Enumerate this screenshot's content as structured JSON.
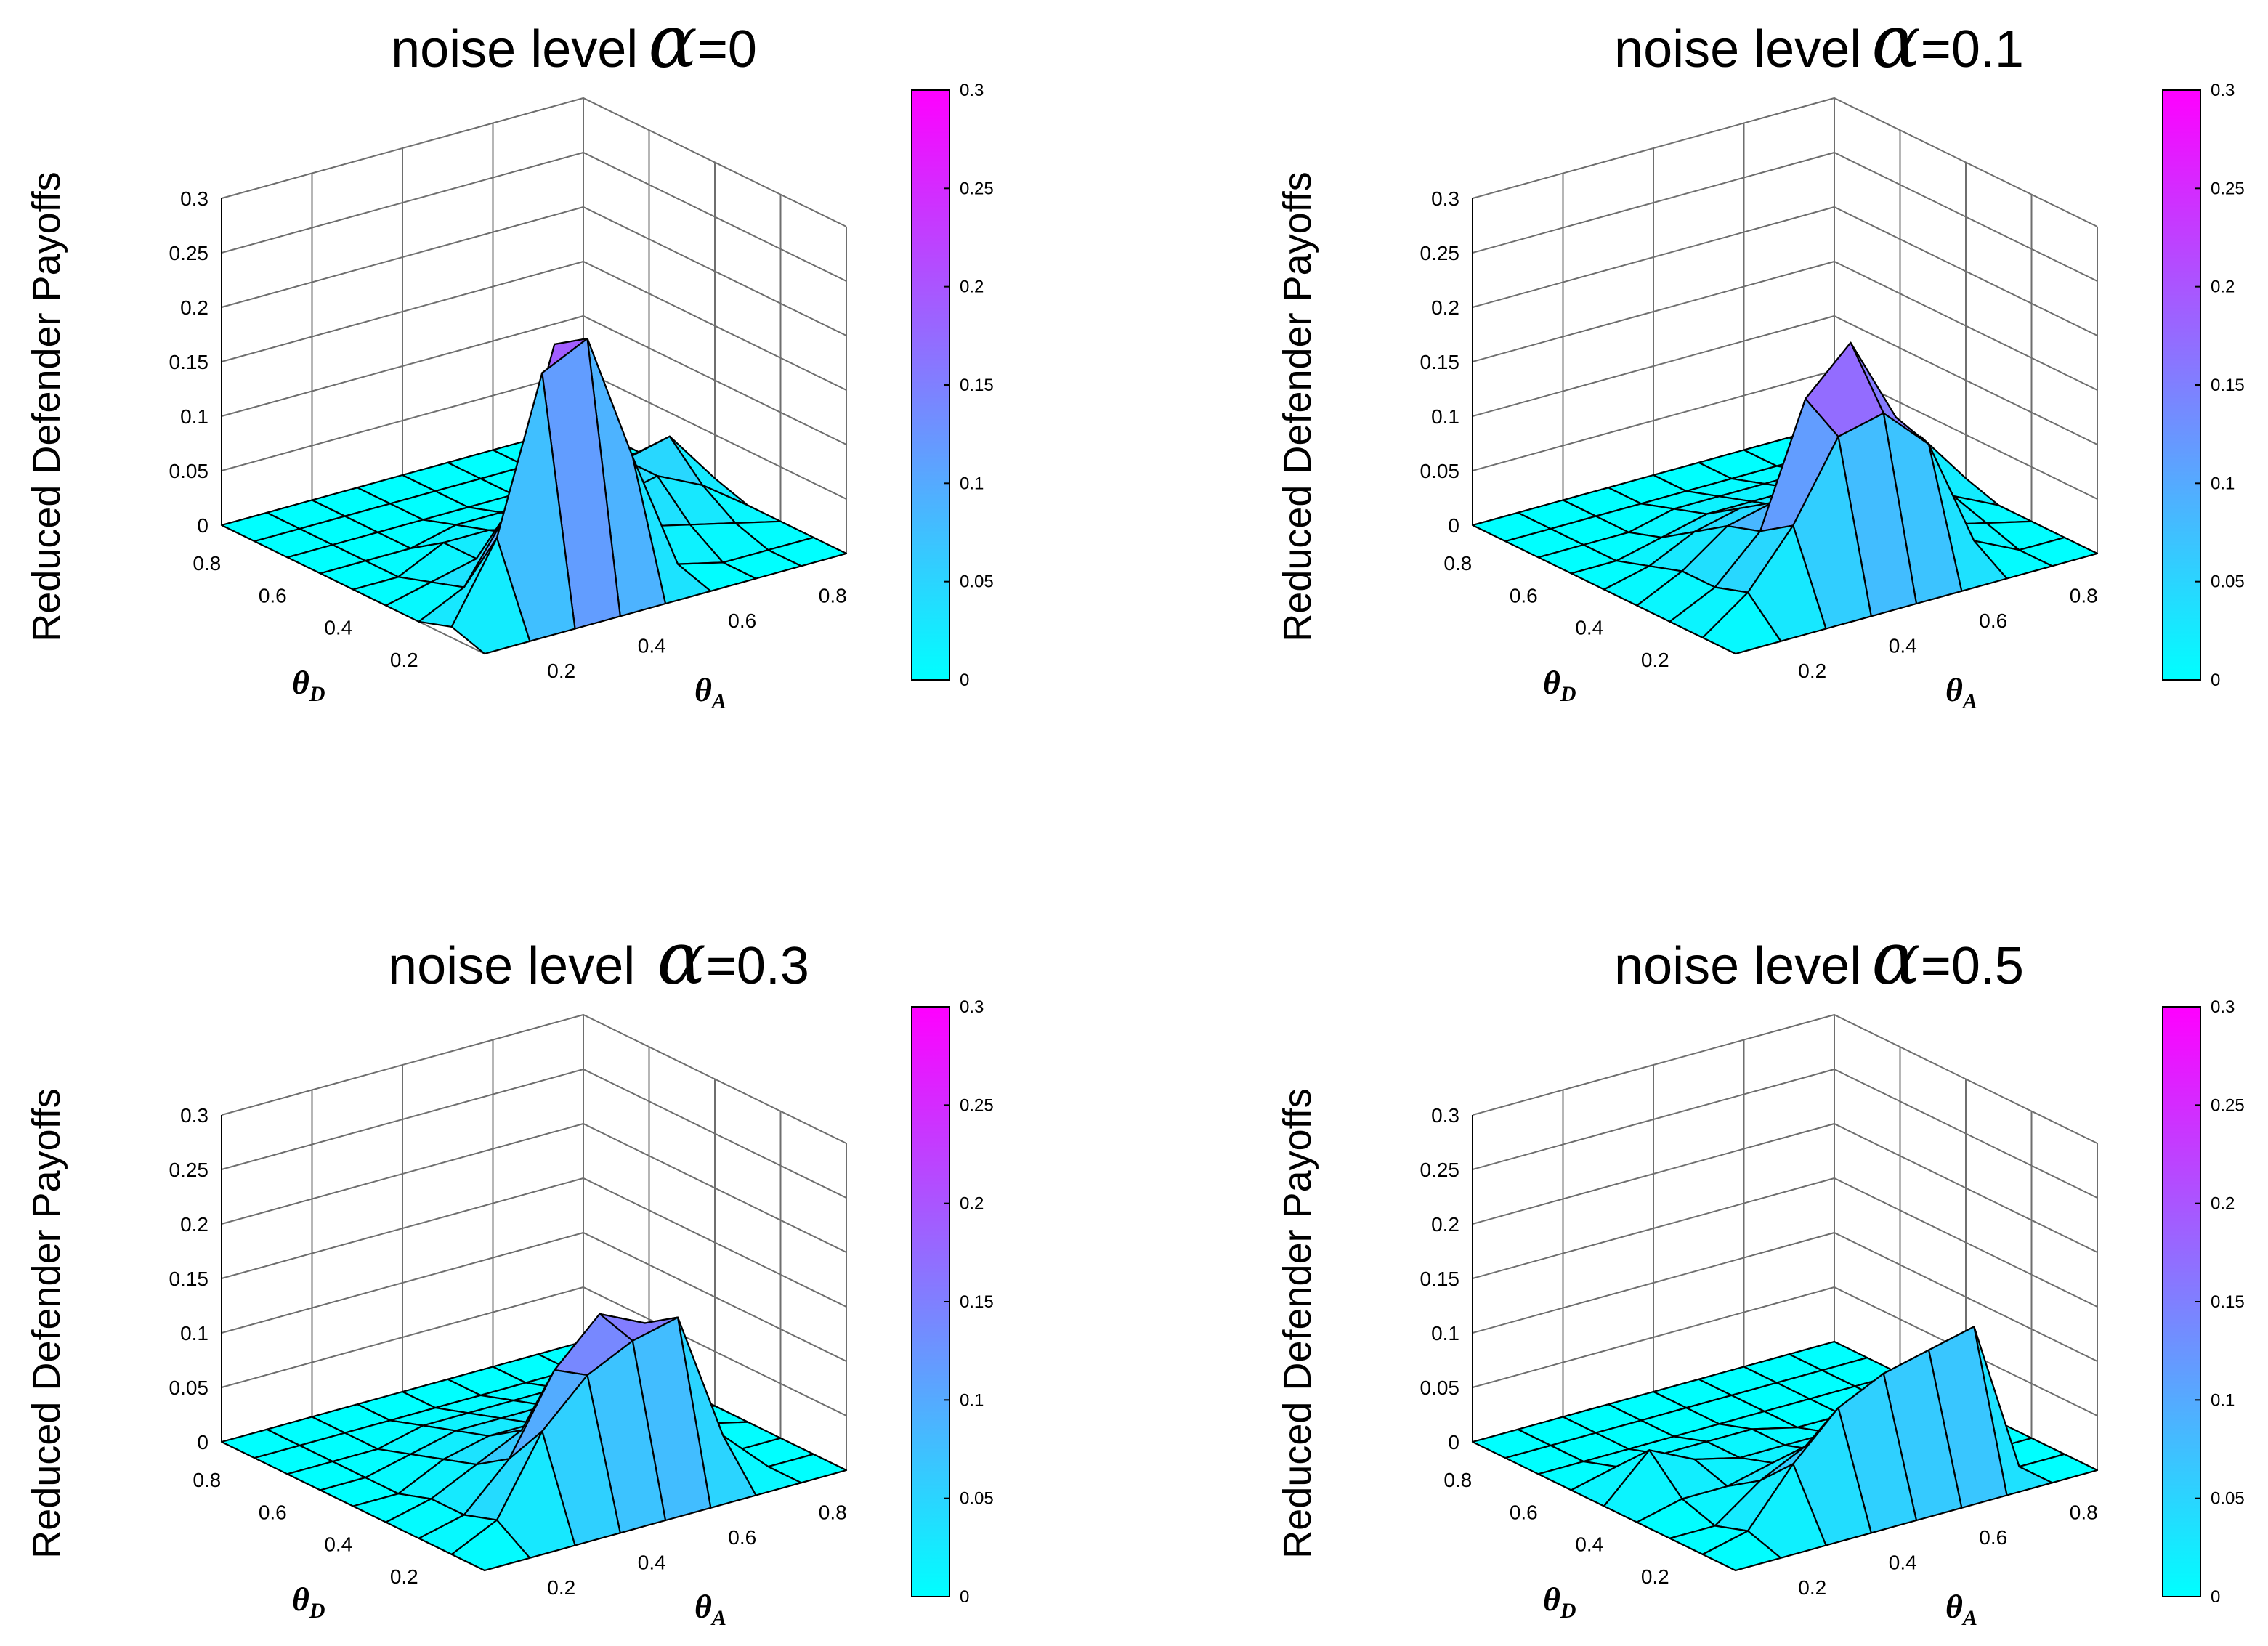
{
  "figure_axis_label": "Reduced Defender Payoffs",
  "colors": {
    "low": "#00ffff",
    "high": "#ff00ff",
    "grid": "#6e6e6e",
    "edge": "#000000"
  },
  "chart_data": [
    {
      "type": "surface",
      "title_prefix": "noise level",
      "alpha_symbol": "α",
      "title_suffix": "=0",
      "xlabel": "θ",
      "xlabel_sub": "D",
      "ylabel": "θ",
      "ylabel_sub": "A",
      "zlabel": "Reduced Defender Payoffs",
      "x_ticks": [
        "0.2",
        "0.4",
        "0.6",
        "0.8"
      ],
      "y_ticks": [
        "0.2",
        "0.4",
        "0.6",
        "0.8"
      ],
      "z_ticks": [
        "0",
        "0.05",
        "0.1",
        "0.15",
        "0.2",
        "0.25",
        "0.3"
      ],
      "colorbar_ticks": [
        "0",
        "0.05",
        "0.1",
        "0.15",
        "0.2",
        "0.25",
        "0.3"
      ],
      "zlim": [
        0,
        0.3
      ],
      "x": [
        0.1,
        0.2,
        0.3,
        0.4,
        0.5,
        0.6,
        0.7,
        0.8,
        0.9
      ],
      "y": [
        0.1,
        0.2,
        0.3,
        0.4,
        0.5,
        0.6,
        0.7,
        0.8,
        0.9
      ],
      "z": [
        [
          0,
          0,
          0,
          0,
          0,
          0,
          0,
          0,
          0
        ],
        [
          0.01,
          0.08,
          0.22,
          0.24,
          0.12,
          0.01,
          0,
          0,
          0
        ],
        [
          0,
          0.02,
          0.08,
          0.22,
          0.09,
          0.03,
          0.02,
          0.01,
          0
        ],
        [
          0,
          0.01,
          0.02,
          0.03,
          0.03,
          0.04,
          0.05,
          0.03,
          0
        ],
        [
          0,
          0,
          0.02,
          0.02,
          0.01,
          0.03,
          0.05,
          0.06,
          0.01
        ],
        [
          0,
          0,
          0,
          0.01,
          0.01,
          0.01,
          0.02,
          0.03,
          0
        ],
        [
          0,
          0,
          0,
          0,
          0,
          0,
          0.01,
          0.01,
          0
        ],
        [
          0,
          0,
          0,
          0,
          0,
          0,
          0,
          0,
          0
        ],
        [
          0,
          0,
          0,
          0,
          0,
          0,
          0,
          0,
          0
        ]
      ]
    },
    {
      "type": "surface",
      "title_prefix": "noise level",
      "alpha_symbol": "α",
      "title_suffix": "=0.1",
      "xlabel": "θ",
      "xlabel_sub": "D",
      "ylabel": "θ",
      "ylabel_sub": "A",
      "zlabel": "Reduced Defender Payoffs",
      "x_ticks": [
        "0.2",
        "0.4",
        "0.6",
        "0.8"
      ],
      "y_ticks": [
        "0.2",
        "0.4",
        "0.6",
        "0.8"
      ],
      "z_ticks": [
        "0",
        "0.05",
        "0.1",
        "0.15",
        "0.2",
        "0.25",
        "0.3"
      ],
      "colorbar_ticks": [
        "0",
        "0.05",
        "0.1",
        "0.15",
        "0.2",
        "0.25",
        "0.3"
      ],
      "zlim": [
        0,
        0.3
      ],
      "x": [
        0.1,
        0.2,
        0.3,
        0.4,
        0.5,
        0.6,
        0.7,
        0.8,
        0.9
      ],
      "y": [
        0.1,
        0.2,
        0.3,
        0.4,
        0.5,
        0.6,
        0.7,
        0.8,
        0.9
      ],
      "z": [
        [
          0,
          0,
          0,
          0,
          0,
          0,
          0,
          0,
          0
        ],
        [
          0,
          0.03,
          0.08,
          0.15,
          0.16,
          0.12,
          0.02,
          0,
          0
        ],
        [
          0,
          0.02,
          0.06,
          0.17,
          0.21,
          0.13,
          0.02,
          0.01,
          0
        ],
        [
          0,
          0.02,
          0.05,
          0.06,
          0.05,
          0.03,
          0.04,
          0.02,
          0
        ],
        [
          0,
          0.01,
          0.03,
          0.04,
          0.03,
          0.03,
          0.05,
          0.06,
          0.01
        ],
        [
          0,
          0,
          0.01,
          0.02,
          0.02,
          0.02,
          0.03,
          0.03,
          0
        ],
        [
          0,
          0,
          0,
          0.01,
          0.01,
          0.01,
          0.01,
          0.01,
          0
        ],
        [
          0,
          0,
          0,
          0,
          0,
          0,
          0,
          0,
          0
        ],
        [
          0,
          0,
          0,
          0,
          0,
          0,
          0,
          0,
          0
        ]
      ]
    },
    {
      "type": "surface",
      "title_prefix": "noise level",
      "alpha_symbol": "α",
      "title_suffix": "=0.3",
      "xlabel": "θ",
      "xlabel_sub": "D",
      "ylabel": "θ",
      "ylabel_sub": "A",
      "zlabel": "Reduced Defender Payoffs",
      "x_ticks": [
        "0.2",
        "0.4",
        "0.6",
        "0.8"
      ],
      "y_ticks": [
        "0.2",
        "0.4",
        "0.6",
        "0.8"
      ],
      "z_ticks": [
        "0",
        "0.05",
        "0.1",
        "0.15",
        "0.2",
        "0.25",
        "0.3"
      ],
      "colorbar_ticks": [
        "0",
        "0.05",
        "0.1",
        "0.15",
        "0.2",
        "0.25",
        "0.3"
      ],
      "zlim": [
        0,
        0.3
      ],
      "x": [
        0.1,
        0.2,
        0.3,
        0.4,
        0.5,
        0.6,
        0.7,
        0.8,
        0.9
      ],
      "y": [
        0.1,
        0.2,
        0.3,
        0.4,
        0.5,
        0.6,
        0.7,
        0.8,
        0.9
      ],
      "z": [
        [
          0,
          0,
          0,
          0,
          0,
          0,
          0,
          0,
          0
        ],
        [
          0,
          0.02,
          0.09,
          0.13,
          0.15,
          0.16,
          0.04,
          0,
          0
        ],
        [
          0,
          0.01,
          0.05,
          0.12,
          0.16,
          0.14,
          0.03,
          0,
          0
        ],
        [
          0,
          0.01,
          0.03,
          0.05,
          0.06,
          0.05,
          0.02,
          0.01,
          0
        ],
        [
          0,
          0,
          0.02,
          0.03,
          0.03,
          0.04,
          0.03,
          0.01,
          0
        ],
        [
          0,
          0,
          0.01,
          0.02,
          0.02,
          0.02,
          0.02,
          0.01,
          0
        ],
        [
          0,
          0,
          0,
          0.01,
          0.01,
          0.01,
          0.01,
          0,
          0
        ],
        [
          0,
          0,
          0,
          0,
          0,
          0,
          0,
          0,
          0
        ],
        [
          0,
          0,
          0,
          0,
          0,
          0,
          0,
          0,
          0
        ]
      ]
    },
    {
      "type": "surface",
      "title_prefix": "noise level",
      "alpha_symbol": "α",
      "title_suffix": "=0.5",
      "xlabel": "θ",
      "xlabel_sub": "D",
      "ylabel": "θ",
      "ylabel_sub": "A",
      "zlabel": "Reduced Defender Payoffs",
      "x_ticks": [
        "0.2",
        "0.4",
        "0.6",
        "0.8"
      ],
      "y_ticks": [
        "0.2",
        "0.4",
        "0.6",
        "0.8"
      ],
      "z_ticks": [
        "0",
        "0.05",
        "0.1",
        "0.15",
        "0.2",
        "0.25",
        "0.3"
      ],
      "colorbar_ticks": [
        "0",
        "0.05",
        "0.1",
        "0.15",
        "0.2",
        "0.25",
        "0.3"
      ],
      "zlim": [
        0,
        0.3
      ],
      "x": [
        0.1,
        0.2,
        0.3,
        0.4,
        0.5,
        0.6,
        0.7,
        0.8,
        0.9
      ],
      "y": [
        0.1,
        0.2,
        0.3,
        0.4,
        0.5,
        0.6,
        0.7,
        0.8,
        0.9
      ],
      "z": [
        [
          0,
          0,
          0,
          0,
          0,
          0,
          0,
          0,
          0
        ],
        [
          0,
          0.01,
          0.06,
          0.1,
          0.12,
          0.13,
          0.14,
          0,
          0
        ],
        [
          0,
          0,
          0.03,
          0.05,
          0.07,
          0.09,
          0.1,
          0,
          0
        ],
        [
          0,
          0.01,
          0.01,
          0.02,
          0.02,
          0.02,
          0.02,
          0,
          0
        ],
        [
          0,
          0.04,
          0.02,
          0.01,
          0.01,
          0.01,
          0.01,
          0,
          0
        ],
        [
          0,
          0.01,
          0.01,
          0.01,
          0.01,
          0,
          0,
          0,
          0
        ],
        [
          0,
          0,
          0,
          0,
          0,
          0,
          0,
          0,
          0
        ],
        [
          0,
          0,
          0,
          0,
          0,
          0,
          0,
          0,
          0
        ],
        [
          0,
          0,
          0,
          0,
          0,
          0,
          0,
          0,
          0
        ]
      ]
    }
  ]
}
